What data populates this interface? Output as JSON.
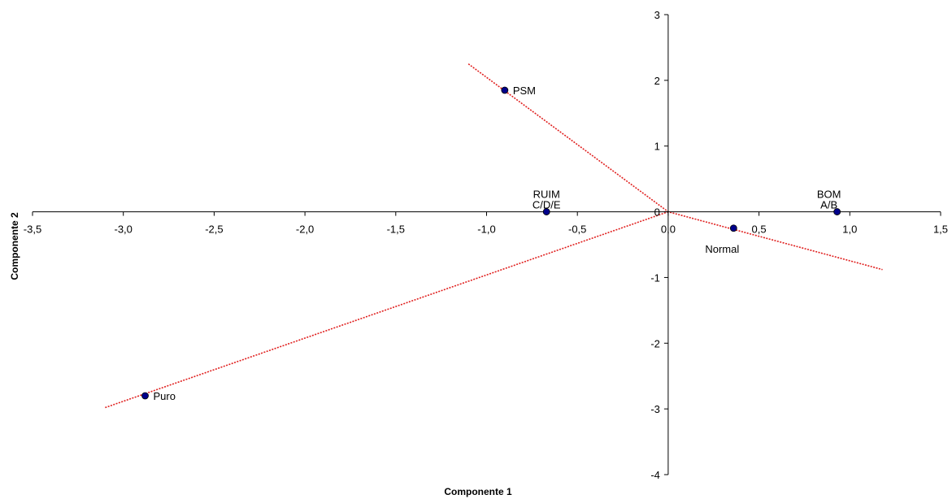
{
  "chart_data": {
    "type": "scatter",
    "title": "",
    "xlabel": "Componente 1",
    "ylabel": "Componente 2",
    "xlim": [
      -3.5,
      1.5
    ],
    "ylim": [
      -4,
      3
    ],
    "x_ticks": [
      {
        "value": -3.5,
        "label": "-3,5"
      },
      {
        "value": -3.0,
        "label": "-3,0"
      },
      {
        "value": -2.5,
        "label": "-2,5"
      },
      {
        "value": -2.0,
        "label": "-2,0"
      },
      {
        "value": -1.5,
        "label": "-1,5"
      },
      {
        "value": -1.0,
        "label": "-1,0"
      },
      {
        "value": -0.5,
        "label": "-0,5"
      },
      {
        "value": 0.0,
        "label": "0,0"
      },
      {
        "value": 0.5,
        "label": "0,5"
      },
      {
        "value": 1.0,
        "label": "1,0"
      },
      {
        "value": 1.5,
        "label": "1,5"
      }
    ],
    "y_ticks": [
      {
        "value": 3,
        "label": "3"
      },
      {
        "value": 2,
        "label": "2"
      },
      {
        "value": 1,
        "label": "1"
      },
      {
        "value": 0,
        "label": "0"
      },
      {
        "value": -1,
        "label": "-1"
      },
      {
        "value": -2,
        "label": "-2"
      },
      {
        "value": -3,
        "label": "-3"
      },
      {
        "value": -4,
        "label": "-4"
      }
    ],
    "points": [
      {
        "label": "PSM",
        "x": -0.9,
        "y": 1.85,
        "label_pos": "right"
      },
      {
        "label": "RUIM\nC/D/E",
        "x": -0.67,
        "y": 0.0,
        "label_pos": "above"
      },
      {
        "label": "BOM\nA/B",
        "x": 0.93,
        "y": 0.0,
        "label_pos": "above-left"
      },
      {
        "label": "Normal",
        "x": 0.36,
        "y": -0.25,
        "label_pos": "below"
      },
      {
        "label": "Puro",
        "x": -2.88,
        "y": -2.8,
        "label_pos": "right"
      }
    ],
    "lines": [
      {
        "x": [
          -1.1,
          0.0,
          1.18
        ],
        "y": [
          2.25,
          0.0,
          -0.88
        ]
      },
      {
        "x": [
          -3.1,
          0.0
        ],
        "y": [
          -2.98,
          0.0
        ]
      }
    ],
    "point_color": "#00008B",
    "line_color": "#E0201F",
    "grid": false,
    "legend": "none"
  }
}
